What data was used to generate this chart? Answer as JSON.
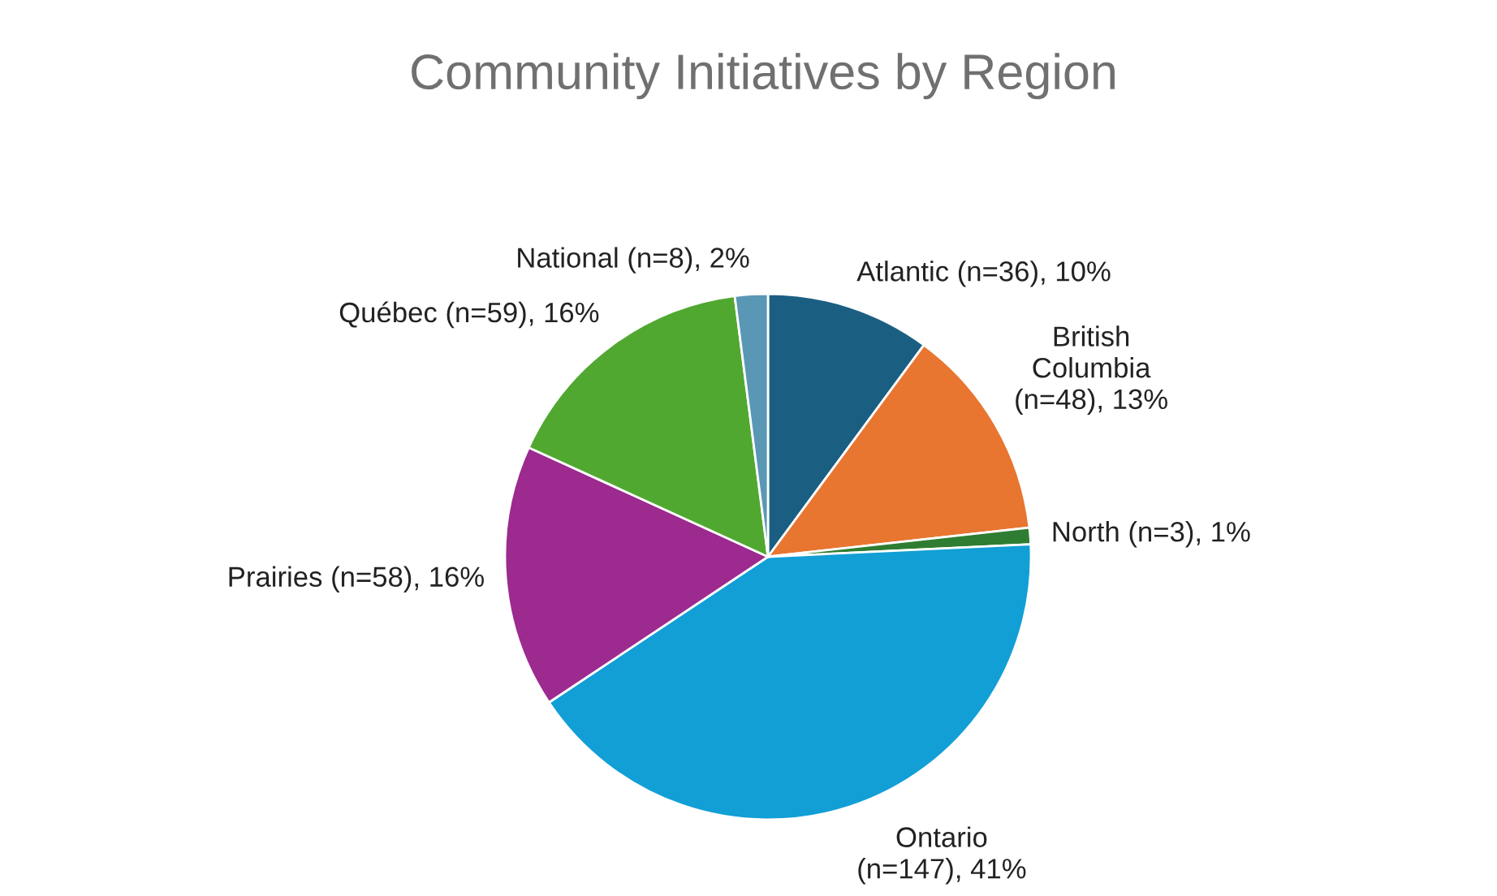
{
  "chart_data": {
    "type": "pie",
    "title": "Community Initiatives by Region",
    "categories": [
      "Atlantic (n=36)",
      "British Columbia (n=48)",
      "North (n=3)",
      "Ontario (n=147)",
      "Prairies (n=58)",
      "Québec (n=59)",
      "National (n=8)"
    ],
    "values": [
      10,
      13,
      1,
      41,
      16,
      16,
      2
    ],
    "value_labels": [
      "10%",
      "13%",
      "1%",
      "41%",
      "16%",
      "16%",
      "2%"
    ],
    "colors": [
      "#1a5f82",
      "#e87530",
      "#2e7d32",
      "#119fd6",
      "#9c2a8f",
      "#51a831",
      "#5a97b5"
    ]
  }
}
